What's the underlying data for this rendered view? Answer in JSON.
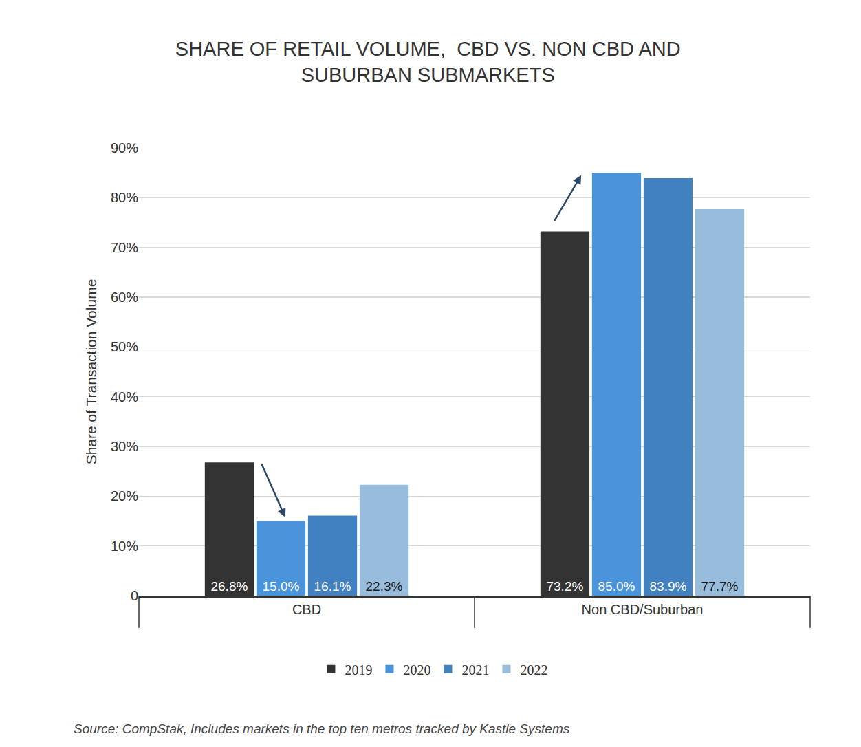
{
  "chart_data": {
    "type": "bar",
    "title": "SHARE OF RETAIL VOLUME,  CBD VS. NON CBD AND\nSUBURBAN SUBMARKETS",
    "y_label": "Share of Transaction Volume",
    "categories": [
      "CBD",
      "Non CBD/Suburban"
    ],
    "series": [
      {
        "name": "2019",
        "color": "#333333",
        "values": [
          26.8,
          73.2
        ],
        "value_labels": [
          "26.8%",
          "73.2%"
        ]
      },
      {
        "name": "2020",
        "color": "#4a94dc",
        "values": [
          15.0,
          85.0
        ],
        "value_labels": [
          "15.0%",
          "85.0%"
        ]
      },
      {
        "name": "2021",
        "color": "#4281c0",
        "values": [
          16.1,
          83.9
        ],
        "value_labels": [
          "16.1%",
          "83.9%"
        ]
      },
      {
        "name": "2022",
        "color": "#98bcdb",
        "values": [
          22.3,
          77.7
        ],
        "value_labels": [
          "22.3%",
          "77.7%"
        ]
      }
    ],
    "ylim": [
      0,
      90
    ],
    "yticks": [
      0,
      {
        "value": 10,
        "label": "10%"
      },
      {
        "value": 20,
        "label": "20%"
      },
      {
        "value": 30,
        "label": "30%"
      },
      {
        "value": 40,
        "label": "40%"
      },
      {
        "value": 50,
        "label": "50%"
      },
      {
        "value": 60,
        "label": "60%"
      },
      {
        "value": 70,
        "label": "70%"
      },
      {
        "value": 80,
        "label": "80%"
      },
      {
        "value": 90,
        "label": "90%"
      }
    ],
    "grid": true,
    "legend": "bottom",
    "data_labels": true,
    "annotations": [
      "Source: CompStak, Includes markets in the top ten metros tracked by Kastle Systems"
    ]
  }
}
